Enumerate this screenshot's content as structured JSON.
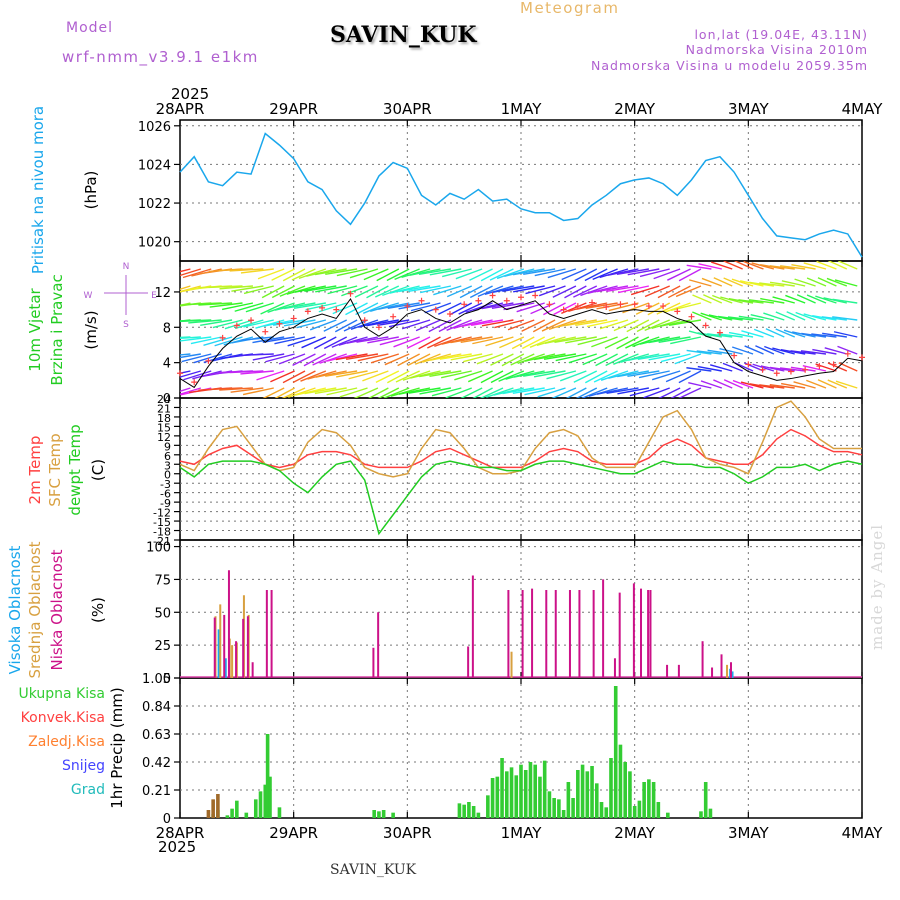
{
  "header": {
    "model_label": "Model",
    "model_name": "wrf-nmm_v3.9.1 e1km",
    "station": "SAVIN_KUK",
    "meteogram": "Meteogram",
    "coords": "lon,lat (19.04E, 43.11N)",
    "elevation": "Nadmorska Visina 2010m",
    "elevation_model": "Nadmorska Visina u modelu 2059.35m",
    "year": "2025"
  },
  "footer": {
    "station": "SAVIN_KUK",
    "credit": "made by Angel"
  },
  "colors": {
    "pressure": "#1aa7ec",
    "temp2m": "#ff4040",
    "sfc": "#d8a040",
    "dewpt": "#22cc22",
    "high_cloud": "#1aa7ec",
    "mid_cloud": "#d8a040",
    "low_cloud": "#cc1188",
    "precip_total": "#33cc33",
    "precip_conv": "#ff4040",
    "precip_frozen": "#ff8030",
    "snow": "#4444ff",
    "graupel": "#22bbbb",
    "windspeed": "#000000",
    "gust": "#ff4040"
  },
  "chart_data": [
    {
      "type": "line",
      "id": "pressure",
      "label_lines": [
        "Pritisak na nivou mora"
      ],
      "unit": "(hPa)",
      "x_ticks": [
        "28APR",
        "29APR",
        "30APR",
        "1MAY",
        "2MAY",
        "3MAY",
        "4MAY"
      ],
      "ylim": [
        1019,
        1026.3
      ],
      "yticks": [
        1020,
        1022,
        1024,
        1026
      ],
      "x": [
        0,
        3,
        6,
        9,
        12,
        15,
        18,
        21,
        24,
        27,
        30,
        33,
        36,
        39,
        42,
        45,
        48,
        51,
        54,
        57,
        60,
        63,
        66,
        69,
        72,
        75,
        78,
        81,
        84,
        87,
        90,
        93,
        96,
        99,
        102,
        105,
        108,
        111,
        114,
        117,
        120,
        123,
        126,
        129,
        132,
        135,
        138,
        141,
        144
      ],
      "series": [
        {
          "values": [
            1023.6,
            1024.4,
            1023.1,
            1022.9,
            1023.6,
            1023.5,
            1025.6,
            1025.0,
            1024.3,
            1023.1,
            1022.7,
            1021.6,
            1020.9,
            1022.0,
            1023.4,
            1024.1,
            1023.8,
            1022.4,
            1021.9,
            1022.5,
            1022.2,
            1022.7,
            1022.1,
            1022.2,
            1021.7,
            1021.5,
            1021.5,
            1021.1,
            1021.2,
            1021.9,
            1022.4,
            1023.0,
            1023.2,
            1023.3,
            1023.0,
            1022.4,
            1023.2,
            1024.2,
            1024.4,
            1023.6,
            1022.4,
            1021.2,
            1020.3,
            1020.2,
            1020.1,
            1020.4,
            1020.6,
            1020.4,
            1019.2
          ]
        }
      ]
    },
    {
      "type": "line",
      "id": "wind",
      "label_lines": [
        "10m Vjetar",
        "Brzina i Pravac"
      ],
      "unit": "(m/s)",
      "compass": [
        "N",
        "W",
        "E",
        "S"
      ],
      "ylim": [
        0,
        15.5
      ],
      "yticks": [
        0,
        4,
        8,
        12
      ],
      "x": [
        0,
        3,
        6,
        9,
        12,
        15,
        18,
        21,
        24,
        27,
        30,
        33,
        36,
        39,
        42,
        45,
        48,
        51,
        54,
        57,
        60,
        63,
        66,
        69,
        72,
        75,
        78,
        81,
        84,
        87,
        90,
        93,
        96,
        99,
        102,
        105,
        108,
        111,
        114,
        117,
        120,
        123,
        126,
        129,
        132,
        135,
        138,
        141,
        144
      ],
      "series": [
        {
          "values": [
            2.2,
            1.2,
            3.6,
            5.6,
            7.0,
            7.8,
            6.3,
            7.5,
            8.0,
            9.0,
            9.5,
            9.0,
            11.2,
            8.0,
            7.0,
            8.0,
            9.5,
            10.0,
            9.0,
            8.5,
            9.5,
            10.0,
            11.0,
            10.0,
            10.5,
            11.0,
            9.5,
            9.0,
            9.5,
            10.0,
            9.5,
            9.8,
            10.0,
            9.8,
            9.8,
            9.0,
            8.5,
            7.0,
            6.5,
            4.0,
            3.0,
            2.5,
            2.0,
            2.2,
            2.5,
            2.8,
            3.0,
            4.5,
            4.2
          ]
        },
        {
          "values": [
            2.8,
            1.8,
            4.2,
            6.8,
            8.2,
            8.8,
            7.5,
            8.4,
            9.0,
            9.8,
            10.2,
            10.0,
            11.8,
            8.8,
            8.0,
            9.2,
            10.4,
            11.0,
            10.0,
            9.5,
            10.6,
            11.0,
            11.6,
            11.0,
            11.4,
            11.6,
            10.6,
            10.0,
            10.4,
            10.8,
            10.3,
            10.6,
            10.6,
            10.4,
            10.4,
            9.8,
            9.2,
            8.2,
            7.4,
            4.8,
            3.8,
            3.2,
            2.8,
            3.0,
            3.2,
            3.6,
            3.8,
            5.0,
            4.6
          ]
        }
      ]
    },
    {
      "type": "line",
      "id": "temperature",
      "label_lines": [
        "2m Temp",
        "SFC Temp",
        "dewpt Temp"
      ],
      "unit": "(C)",
      "ylim": [
        -21,
        24
      ],
      "yticks": [
        -21,
        -18,
        -15,
        -12,
        -9,
        -6,
        -3,
        0,
        3,
        6,
        9,
        12,
        15,
        18,
        21,
        24
      ],
      "x": [
        0,
        3,
        6,
        9,
        12,
        15,
        18,
        21,
        24,
        27,
        30,
        33,
        36,
        39,
        42,
        45,
        48,
        51,
        54,
        57,
        60,
        63,
        66,
        69,
        72,
        75,
        78,
        81,
        84,
        87,
        90,
        93,
        96,
        99,
        102,
        105,
        108,
        111,
        114,
        117,
        120,
        123,
        126,
        129,
        132,
        135,
        138,
        141,
        144
      ],
      "series": [
        {
          "name": "2m Temp",
          "values": [
            4,
            3,
            6,
            8,
            9,
            6,
            3,
            2,
            3,
            6,
            7,
            7,
            6,
            3,
            2,
            2,
            2,
            4,
            7,
            8,
            6,
            4,
            2,
            2,
            2,
            4,
            7,
            8,
            7,
            4,
            3,
            3,
            3,
            5,
            9,
            11,
            9,
            5,
            4,
            3,
            3,
            6,
            11,
            14,
            12,
            9,
            7,
            7,
            6
          ]
        },
        {
          "name": "SFC Temp",
          "values": [
            3,
            1,
            8,
            14,
            15,
            9,
            3,
            1,
            2,
            10,
            14,
            13,
            9,
            2,
            0,
            -1,
            0,
            8,
            14,
            13,
            8,
            2,
            0,
            0,
            1,
            8,
            13,
            14,
            12,
            5,
            2,
            2,
            2,
            10,
            18,
            20,
            14,
            5,
            3,
            2,
            0,
            10,
            21,
            23,
            18,
            11,
            8,
            8,
            8
          ]
        },
        {
          "name": "dewpt Temp",
          "values": [
            2,
            -1,
            3,
            4,
            4,
            4,
            3,
            1,
            -3,
            -6,
            -1,
            3,
            4,
            -2,
            -19,
            -13,
            -7,
            -1,
            3,
            4,
            3,
            2,
            2,
            1,
            1,
            3,
            4,
            4,
            3,
            2,
            1,
            0,
            0,
            2,
            4,
            3,
            3,
            2,
            2,
            0,
            -3,
            -1,
            2,
            2,
            3,
            1,
            3,
            4,
            3
          ]
        }
      ]
    },
    {
      "type": "bar",
      "id": "clouds",
      "label_lines": [
        "Visoka Oblacnost",
        "Srednja Oblacnost",
        "Niska Oblacnost"
      ],
      "unit": "(%)",
      "ylim": [
        0,
        105
      ],
      "yticks": [
        0,
        25,
        50,
        75,
        100
      ],
      "series": [
        {
          "name": "Visoka Oblacnost",
          "x": [
            8.5,
            10,
            116.5,
            117
          ],
          "values": [
            37,
            15,
            7,
            5
          ]
        },
        {
          "name": "Srednja Oblacnost",
          "x": [
            7.5,
            8.5,
            10.5,
            11,
            12,
            13.5,
            14.5,
            70,
            115.5
          ],
          "values": [
            47,
            56,
            30,
            25,
            27,
            63,
            48,
            20,
            10
          ]
        },
        {
          "name": "Niska Oblacnost",
          "x": [
            7,
            9,
            10,
            11.5,
            13,
            14,
            15,
            18,
            19,
            40.5,
            41.5,
            60.5,
            61.5,
            69,
            72,
            74,
            77,
            79,
            82,
            84,
            87,
            89,
            91.5,
            92.5,
            95.5,
            97,
            98.5,
            99,
            102.5,
            105,
            110,
            112,
            114,
            116
          ],
          "values": [
            46,
            48,
            82,
            28,
            45,
            47,
            12,
            67,
            67,
            23,
            50,
            24,
            78,
            67,
            67,
            68,
            67,
            67,
            67,
            67,
            67,
            75,
            15,
            65,
            72,
            68,
            67,
            67,
            10,
            10,
            28,
            8,
            18,
            12
          ]
        }
      ]
    },
    {
      "type": "bar",
      "id": "precip",
      "label_lines": [
        "1hr Precip (mm)"
      ],
      "legend": [
        "Ukupna Kisa",
        "Konvek.Kisa",
        "Zaledj.Kisa",
        "Snijeg",
        "Grad"
      ],
      "ylim": [
        0,
        1.05
      ],
      "yticks": [
        0,
        0.21,
        0.42,
        0.63,
        0.84,
        1.05
      ],
      "series": [
        {
          "name": "Ukupna Kisa",
          "x": [
            7,
            8,
            10,
            11,
            12,
            14,
            16,
            17,
            18,
            18.5,
            19,
            21,
            41,
            42,
            43,
            45,
            59,
            60,
            61,
            62,
            63,
            65,
            66,
            67,
            68,
            69,
            70,
            71,
            72,
            73,
            74,
            75,
            76,
            77,
            78,
            79,
            80,
            81,
            82,
            83,
            84,
            85,
            86,
            87,
            88,
            89,
            90,
            91,
            92,
            93,
            94,
            95,
            96,
            97,
            98,
            99,
            100,
            101,
            103,
            110,
            111,
            112
          ],
          "values": [
            0.03,
            0.06,
            0.02,
            0.07,
            0.13,
            0.04,
            0.14,
            0.2,
            0.25,
            0.63,
            0.31,
            0.08,
            0.06,
            0.05,
            0.06,
            0.04,
            0.11,
            0.1,
            0.12,
            0.09,
            0.04,
            0.17,
            0.3,
            0.31,
            0.45,
            0.35,
            0.38,
            0.32,
            0.4,
            0.36,
            0.42,
            0.4,
            0.31,
            0.43,
            0.2,
            0.15,
            0.14,
            0.06,
            0.27,
            0.15,
            0.36,
            0.4,
            0.35,
            0.39,
            0.26,
            0.12,
            0.08,
            0.45,
            0.99,
            0.55,
            0.42,
            0.35,
            0.09,
            0.13,
            0.27,
            0.29,
            0.27,
            0.12,
            0.04,
            0.05,
            0.27,
            0.07
          ]
        },
        {
          "name": "Konvek.Kisa",
          "x": [
            6,
            7,
            8
          ],
          "values": [
            0.06,
            0.14,
            0.18
          ]
        }
      ]
    }
  ]
}
